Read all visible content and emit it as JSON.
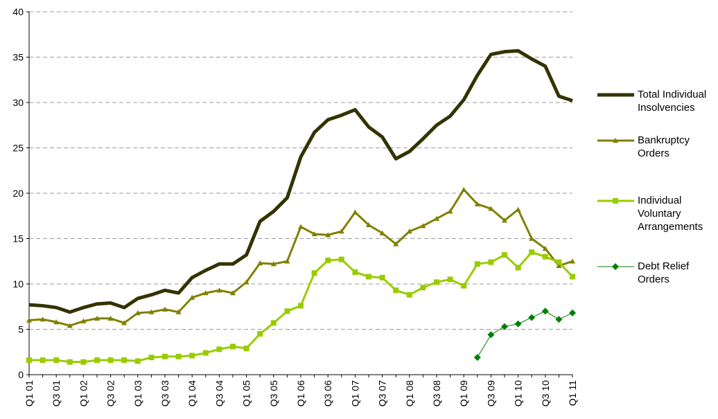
{
  "chart_data": {
    "type": "line",
    "categories": [
      "Q1 01",
      null,
      "Q3 01",
      null,
      "Q1 02",
      null,
      "Q3 02",
      null,
      "Q1 03",
      null,
      "Q3 03",
      null,
      "Q1 04",
      null,
      "Q3 04",
      null,
      "Q1 05",
      null,
      "Q3 05",
      null,
      "Q1 06",
      null,
      "Q3 06",
      null,
      "Q1 07",
      null,
      "Q3 07",
      null,
      "Q1 08",
      null,
      "Q3 08",
      null,
      "Q1 09",
      null,
      "Q3 09",
      null,
      "Q1 10",
      null,
      "Q3 10",
      null,
      "Q1 11"
    ],
    "series": [
      {
        "name": "Total Individual Insolvencies",
        "color": "#333300",
        "marker": "none",
        "width": 5,
        "values": [
          7.7,
          7.6,
          7.4,
          6.9,
          7.4,
          7.8,
          7.9,
          7.4,
          8.4,
          8.8,
          9.3,
          9.0,
          10.7,
          11.5,
          12.2,
          12.2,
          13.2,
          16.9,
          18.0,
          19.5,
          24.0,
          26.7,
          28.1,
          28.6,
          29.2,
          27.3,
          26.2,
          23.8,
          24.6,
          26.0,
          27.5,
          28.5,
          30.3,
          33.0,
          35.3,
          35.6,
          35.7,
          34.8,
          34.0,
          30.7,
          30.2
        ]
      },
      {
        "name": "Bankruptcy Orders",
        "color": "#808000",
        "marker": "triangle",
        "width": 3,
        "values": [
          6.0,
          6.1,
          5.8,
          5.4,
          5.9,
          6.2,
          6.2,
          5.7,
          6.8,
          6.9,
          7.2,
          6.9,
          8.5,
          9.0,
          9.3,
          9.0,
          10.2,
          12.3,
          12.2,
          12.5,
          16.3,
          15.5,
          15.4,
          15.8,
          17.9,
          16.5,
          15.6,
          14.4,
          15.8,
          16.4,
          17.2,
          18.0,
          20.4,
          18.8,
          18.3,
          17.0,
          18.2,
          15.0,
          13.9,
          12.0,
          12.5
        ]
      },
      {
        "name": "Individual Voluntary Arrangements",
        "color": "#99cc00",
        "marker": "square",
        "width": 3,
        "values": [
          1.6,
          1.6,
          1.6,
          1.4,
          1.4,
          1.6,
          1.6,
          1.6,
          1.5,
          1.9,
          2.0,
          2.0,
          2.1,
          2.4,
          2.8,
          3.1,
          2.9,
          4.5,
          5.7,
          7.0,
          7.6,
          11.2,
          12.6,
          12.7,
          11.3,
          10.8,
          10.7,
          9.3,
          8.8,
          9.6,
          10.2,
          10.5,
          9.8,
          12.2,
          12.4,
          13.2,
          11.8,
          13.5,
          13.0,
          12.4,
          10.8
        ]
      },
      {
        "name": "Debt Relief Orders",
        "color": "#008000",
        "marker": "diamond",
        "width": 1,
        "values": [
          null,
          null,
          null,
          null,
          null,
          null,
          null,
          null,
          null,
          null,
          null,
          null,
          null,
          null,
          null,
          null,
          null,
          null,
          null,
          null,
          null,
          null,
          null,
          null,
          null,
          null,
          null,
          null,
          null,
          null,
          null,
          null,
          null,
          1.9,
          4.4,
          5.3,
          5.6,
          6.3,
          7.0,
          6.1,
          6.8
        ]
      }
    ],
    "ylim": [
      0,
      40
    ],
    "yticks": [
      0,
      5,
      10,
      15,
      20,
      25,
      30,
      35,
      40
    ],
    "grid": true,
    "legend": "right"
  }
}
